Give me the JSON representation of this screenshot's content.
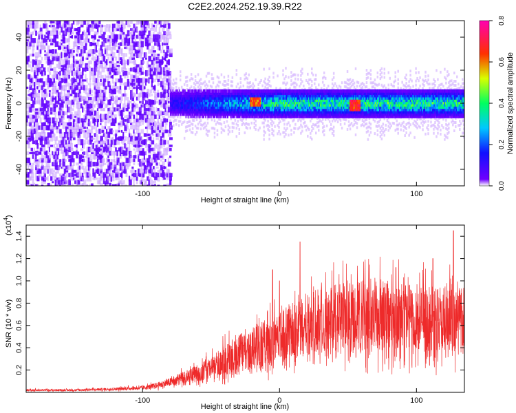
{
  "title": "C2E2.2024.252.19.39.R22",
  "colors": {
    "plot_bg": "#ffffff",
    "noise_purple": "#7b22f0",
    "noise_light": "#c9a5f5",
    "snr_line": "#ee2a2a"
  },
  "chart_data": [
    {
      "type": "heatmap",
      "title": "C2E2.2024.252.19.39.R22",
      "xlabel": "Height of straight line (km)",
      "ylabel": "Frequency (Hz)",
      "xlim": [
        -185,
        135
      ],
      "ylim": [
        -50,
        50
      ],
      "x_ticks": [
        -100,
        0,
        100
      ],
      "y_ticks": [
        -40,
        -20,
        0,
        20,
        40
      ],
      "grid": false,
      "colorbar": {
        "label": "Normalized spectral amplitude",
        "range": [
          0.0,
          0.8
        ],
        "ticks": [
          0.0,
          0.2,
          0.4,
          0.6,
          0.8
        ],
        "colormap": "rainbow (violet-blue-cyan-green-yellow-red-magenta)"
      },
      "regions": [
        {
          "x_range": [
            -185,
            -80
          ],
          "freq_range": [
            -50,
            50
          ],
          "amplitude": 0.05,
          "description_level": "broadband low amplitude"
        },
        {
          "x_range": [
            -80,
            135
          ],
          "freq_range": [
            -8,
            8
          ],
          "amplitude": 0.45,
          "description_level": "narrowband signal near 0 Hz"
        },
        {
          "x": -18,
          "freq": 1,
          "amplitude": 0.7
        },
        {
          "x": 55,
          "freq": -1,
          "amplitude": 0.75
        }
      ]
    },
    {
      "type": "line",
      "xlabel": "Height of straight line (km)",
      "ylabel": "SNR (10 * v/v)",
      "y_scale_label": "(x10",
      "y_scale_exponent": "4",
      "xlim": [
        -185,
        135
      ],
      "ylim": [
        0,
        1.5
      ],
      "x_ticks": [
        -100,
        0,
        100
      ],
      "y_ticks": [
        0.2,
        0.4,
        0.6,
        0.8,
        1.0,
        1.2,
        1.4
      ],
      "y_tick_labels": [
        "0.2",
        "0.4",
        "0.6",
        "0.8",
        "1.0",
        "1.2",
        "1.4"
      ],
      "grid": false,
      "series": [
        {
          "color": "#ee2a2a",
          "x": [
            -185,
            -150,
            -120,
            -100,
            -90,
            -80,
            -70,
            -60,
            -50,
            -40,
            -30,
            -20,
            -10,
            0,
            10,
            20,
            30,
            40,
            50,
            60,
            70,
            80,
            90,
            100,
            110,
            120,
            135
          ],
          "y": [
            0.02,
            0.02,
            0.03,
            0.04,
            0.06,
            0.09,
            0.13,
            0.17,
            0.22,
            0.3,
            0.36,
            0.4,
            0.46,
            0.5,
            0.58,
            0.62,
            0.65,
            0.67,
            0.7,
            0.7,
            0.72,
            0.7,
            0.68,
            0.67,
            0.66,
            0.66,
            0.7
          ],
          "peaks": [
            {
              "x": 15,
              "y": 1.35
            },
            {
              "x": -5,
              "y": 1.1
            },
            {
              "x": 0,
              "y": 1.0
            },
            {
              "x": 85,
              "y": 1.12
            },
            {
              "x": 112,
              "y": 1.2
            },
            {
              "x": 127,
              "y": 1.45
            }
          ]
        }
      ]
    }
  ]
}
